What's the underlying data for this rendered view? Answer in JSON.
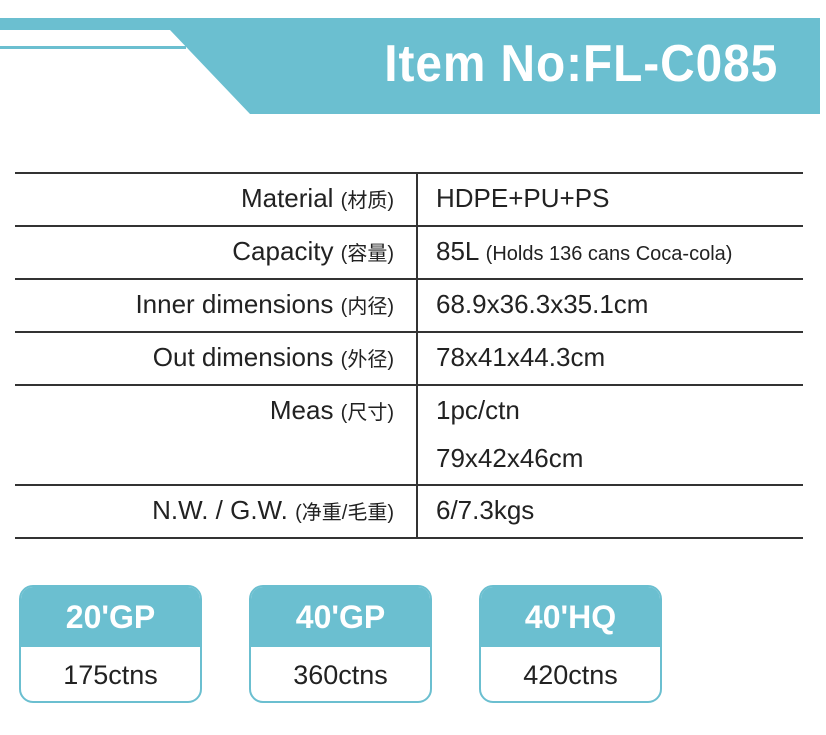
{
  "header": {
    "title": "Item No:FL-C085",
    "accent_color": "#6bbfd0"
  },
  "specs": [
    {
      "label": "Material",
      "label_cn": "(材质)",
      "value": "HDPE+PU+PS"
    },
    {
      "label": "Capacity",
      "label_cn": "(容量)",
      "value": "85L",
      "value_note": "(Holds 136 cans Coca-cola)"
    },
    {
      "label": "Inner dimensions",
      "label_cn": "(内径)",
      "value": "68.9x36.3x35.1cm"
    },
    {
      "label": "Out dimensions",
      "label_cn": "(外径)",
      "value": "78x41x44.3cm"
    },
    {
      "label": "Meas",
      "label_cn": "(尺寸)",
      "value": "1pc/ctn",
      "value2": "79x42x46cm"
    },
    {
      "label": "N.W. / G.W.",
      "label_cn": "(净重/毛重)",
      "value": "6/7.3kgs"
    }
  ],
  "containers": [
    {
      "type": "20'GP",
      "qty": "175ctns"
    },
    {
      "type": "40'GP",
      "qty": "360ctns"
    },
    {
      "type": "40'HQ",
      "qty": "420ctns"
    }
  ]
}
